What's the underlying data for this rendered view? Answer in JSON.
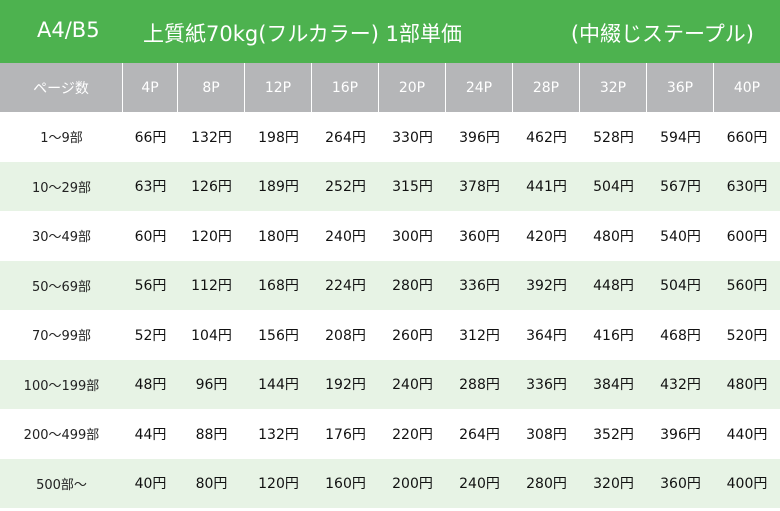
{
  "title": {
    "size": "A4/B5",
    "spec": "上質紙70kg(フルカラー) 1部単価",
    "note": "(中綴じステープル)"
  },
  "table": {
    "header_label": "ページ数",
    "columns": [
      "4P",
      "8P",
      "12P",
      "16P",
      "20P",
      "24P",
      "28P",
      "32P",
      "36P",
      "40P"
    ],
    "rows": [
      {
        "qty": "1〜9部",
        "prices": [
          "66円",
          "132円",
          "198円",
          "264円",
          "330円",
          "396円",
          "462円",
          "528円",
          "594円",
          "660円"
        ]
      },
      {
        "qty": "10〜29部",
        "prices": [
          "63円",
          "126円",
          "189円",
          "252円",
          "315円",
          "378円",
          "441円",
          "504円",
          "567円",
          "630円"
        ]
      },
      {
        "qty": "30〜49部",
        "prices": [
          "60円",
          "120円",
          "180円",
          "240円",
          "300円",
          "360円",
          "420円",
          "480円",
          "540円",
          "600円"
        ]
      },
      {
        "qty": "50〜69部",
        "prices": [
          "56円",
          "112円",
          "168円",
          "224円",
          "280円",
          "336円",
          "392円",
          "448円",
          "504円",
          "560円"
        ]
      },
      {
        "qty": "70〜99部",
        "prices": [
          "52円",
          "104円",
          "156円",
          "208円",
          "260円",
          "312円",
          "364円",
          "416円",
          "468円",
          "520円"
        ]
      },
      {
        "qty": "100〜199部",
        "prices": [
          "48円",
          "96円",
          "144円",
          "192円",
          "240円",
          "288円",
          "336円",
          "384円",
          "432円",
          "480円"
        ]
      },
      {
        "qty": "200〜499部",
        "prices": [
          "44円",
          "88円",
          "132円",
          "176円",
          "220円",
          "264円",
          "308円",
          "352円",
          "396円",
          "440円"
        ]
      },
      {
        "qty": "500部〜",
        "prices": [
          "40円",
          "80円",
          "120円",
          "160円",
          "200円",
          "240円",
          "280円",
          "320円",
          "360円",
          "400円"
        ]
      }
    ]
  }
}
